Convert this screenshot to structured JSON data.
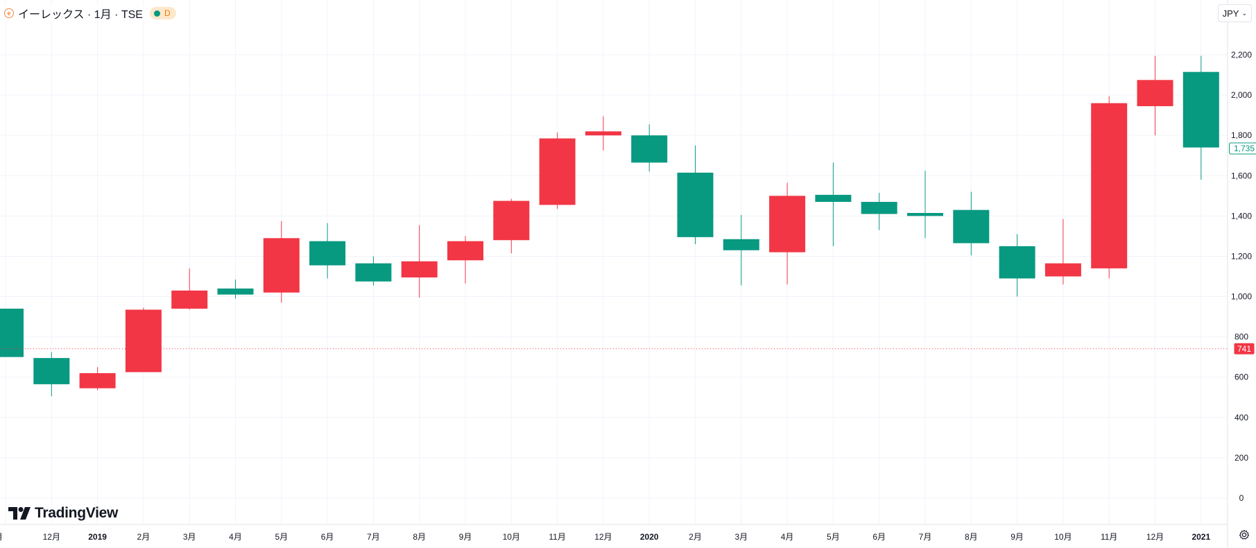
{
  "header": {
    "title": "イーレックス · 1月 · TSE",
    "status_label": "D",
    "currency": "JPY"
  },
  "brand": {
    "name": "TradingView"
  },
  "colors": {
    "up": "#089981",
    "down": "#f23645",
    "grid": "#f0f3fa",
    "axis_text": "#131722"
  },
  "chart_data": {
    "type": "candlestick",
    "y_ticks": [
      "2,200",
      "2,000",
      "1,800",
      "1,600",
      "1,400",
      "1,200",
      "1,000",
      "800",
      "600",
      "400",
      "200",
      "0"
    ],
    "ylim": [
      0,
      2200
    ],
    "x_labels": [
      "月",
      "12月",
      "2019",
      "2月",
      "3月",
      "4月",
      "5月",
      "6月",
      "7月",
      "8月",
      "9月",
      "10月",
      "11月",
      "12月",
      "2020",
      "2月",
      "3月",
      "4月",
      "5月",
      "6月",
      "7月",
      "8月",
      "9月",
      "10月",
      "11月",
      "12月",
      "2021"
    ],
    "candles": [
      {
        "o": 700,
        "h": 940,
        "l": 700,
        "c": 940
      },
      {
        "o": 565,
        "h": 725,
        "l": 505,
        "c": 695
      },
      {
        "o": 620,
        "h": 650,
        "l": 535,
        "c": 545
      },
      {
        "o": 935,
        "h": 945,
        "l": 625,
        "c": 625
      },
      {
        "o": 1030,
        "h": 1140,
        "l": 935,
        "c": 940
      },
      {
        "o": 1010,
        "h": 1085,
        "l": 990,
        "c": 1040
      },
      {
        "o": 1290,
        "h": 1375,
        "l": 970,
        "c": 1020
      },
      {
        "o": 1155,
        "h": 1365,
        "l": 1090,
        "c": 1275
      },
      {
        "o": 1075,
        "h": 1200,
        "l": 1055,
        "c": 1165
      },
      {
        "o": 1175,
        "h": 1355,
        "l": 995,
        "c": 1095
      },
      {
        "o": 1275,
        "h": 1300,
        "l": 1065,
        "c": 1180
      },
      {
        "o": 1475,
        "h": 1485,
        "l": 1215,
        "c": 1280
      },
      {
        "o": 1785,
        "h": 1815,
        "l": 1435,
        "c": 1455
      },
      {
        "o": 1820,
        "h": 1895,
        "l": 1725,
        "c": 1800
      },
      {
        "o": 1665,
        "h": 1855,
        "l": 1620,
        "c": 1800
      },
      {
        "o": 1295,
        "h": 1750,
        "l": 1260,
        "c": 1615
      },
      {
        "o": 1230,
        "h": 1405,
        "l": 1055,
        "c": 1285
      },
      {
        "o": 1500,
        "h": 1565,
        "l": 1060,
        "c": 1220
      },
      {
        "o": 1470,
        "h": 1665,
        "l": 1250,
        "c": 1505
      },
      {
        "o": 1410,
        "h": 1515,
        "l": 1330,
        "c": 1470
      },
      {
        "o": 1400,
        "h": 1625,
        "l": 1290,
        "c": 1415
      },
      {
        "o": 1265,
        "h": 1520,
        "l": 1205,
        "c": 1430
      },
      {
        "o": 1090,
        "h": 1310,
        "l": 1000,
        "c": 1250
      },
      {
        "o": 1165,
        "h": 1385,
        "l": 1060,
        "c": 1100
      },
      {
        "o": 1960,
        "h": 1995,
        "l": 1090,
        "c": 1140
      },
      {
        "o": 2075,
        "h": 2195,
        "l": 1800,
        "c": 1945
      },
      {
        "o": 1740,
        "h": 2195,
        "l": 1580,
        "c": 2115
      }
    ],
    "price_labels": [
      {
        "value": 1735,
        "text": "1,735",
        "style": "outline",
        "color": "#089981"
      },
      {
        "value": 741,
        "text": "741",
        "style": "filled",
        "color": "#f23645"
      }
    ],
    "reference_line": {
      "value": 741,
      "color": "#f23645"
    }
  }
}
